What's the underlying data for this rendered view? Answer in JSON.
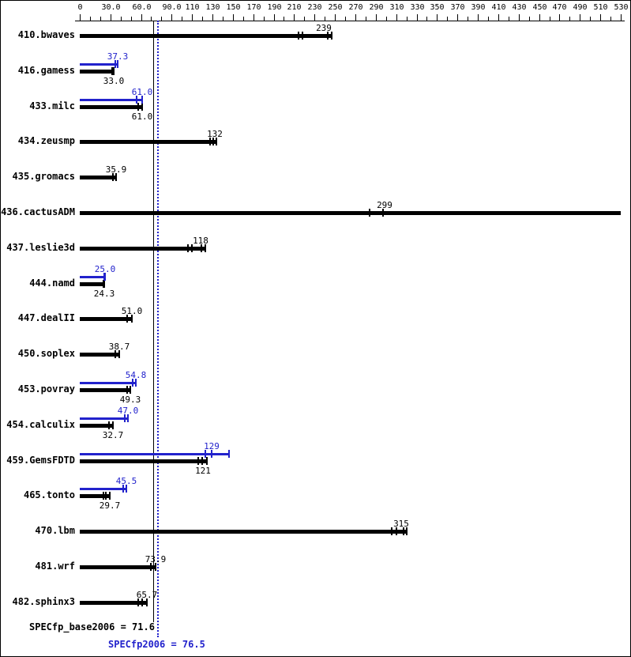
{
  "chart_data": {
    "type": "bar",
    "orientation": "horizontal",
    "title": "",
    "xlabel": "",
    "ylabel": "",
    "xlim": [
      0,
      530
    ],
    "grid": false,
    "legend": "none",
    "colors": {
      "base": "#000000",
      "peak": "#2222cc",
      "background": "#ffffff"
    },
    "axis": {
      "min": 0,
      "max": 530,
      "minor_tick_step": 10,
      "tick_values": [
        0,
        30,
        60,
        90,
        110,
        130,
        150,
        170,
        190,
        210,
        230,
        250,
        270,
        290,
        310,
        330,
        350,
        370,
        390,
        410,
        430,
        450,
        470,
        490,
        510,
        530
      ],
      "tick_labels": [
        "0",
        "30.0",
        "60.0",
        "90.0",
        "110",
        "130",
        "150",
        "170",
        "190",
        "210",
        "230",
        "250",
        "270",
        "290",
        "310",
        "330",
        "350",
        "370",
        "390",
        "410",
        "430",
        "450",
        "470",
        "490",
        "510",
        "530"
      ]
    },
    "categories": [
      "410.bwaves",
      "416.gamess",
      "433.milc",
      "434.zeusmp",
      "435.gromacs",
      "436.cactusADM",
      "437.leslie3d",
      "444.namd",
      "447.dealII",
      "450.soplex",
      "453.povray",
      "454.calculix",
      "459.GemsFDTD",
      "465.tonto",
      "470.lbm",
      "481.wrf",
      "482.sphinx3"
    ],
    "series": [
      {
        "name": "peak",
        "color": "#2222cc",
        "values": [
          null,
          37.3,
          61.0,
          null,
          null,
          null,
          null,
          25.0,
          null,
          null,
          54.8,
          47.0,
          129,
          45.5,
          null,
          null,
          null
        ]
      },
      {
        "name": "base",
        "color": "#000000",
        "values": [
          239,
          33.0,
          61.0,
          132,
          35.9,
          299,
          118,
          24.3,
          51.0,
          38.7,
          49.3,
          32.7,
          121,
          29.7,
          315,
          73.9,
          65.7
        ]
      }
    ],
    "benchmarks": [
      {
        "name": "410.bwaves",
        "peak": null,
        "base": {
          "value": 239,
          "label": "239",
          "runs": [
            214,
            218,
            243,
            247
          ],
          "end": 247
        }
      },
      {
        "name": "416.gamess",
        "peak": {
          "value": 37.3,
          "label": "37.3",
          "runs": [
            34.5,
            37.3
          ],
          "end": 37.3
        },
        "base": {
          "value": 33.0,
          "label": "33.0",
          "runs": [
            31.5,
            33.0
          ],
          "end": 33.0
        }
      },
      {
        "name": "433.milc",
        "peak": {
          "value": 61.0,
          "label": "61.0",
          "runs": [
            56.0,
            61.0
          ],
          "end": 61.0
        },
        "base": {
          "value": 61.0,
          "label": "61.0",
          "runs": [
            57.0,
            61.0
          ],
          "end": 61.0
        }
      },
      {
        "name": "434.zeusmp",
        "peak": null,
        "base": {
          "value": 132,
          "label": "132",
          "runs": [
            128,
            131,
            134
          ],
          "end": 134
        }
      },
      {
        "name": "435.gromacs",
        "peak": null,
        "base": {
          "value": 35.9,
          "label": "35.9",
          "runs": [
            32.5,
            35.9
          ],
          "end": 35.9
        }
      },
      {
        "name": "436.cactusADM",
        "peak": null,
        "base": {
          "value": 299,
          "label": "299",
          "runs": [
            284,
            297
          ],
          "end": 530
        }
      },
      {
        "name": "437.leslie3d",
        "peak": null,
        "base": {
          "value": 118,
          "label": "118",
          "runs": [
            106,
            110,
            119,
            123
          ],
          "end": 123
        }
      },
      {
        "name": "444.namd",
        "peak": {
          "value": 25.0,
          "label": "25.0",
          "runs": [
            24.0,
            25.0
          ],
          "end": 25.0
        },
        "base": {
          "value": 24.3,
          "label": "24.3",
          "runs": [
            23.3,
            24.3
          ],
          "end": 24.3
        }
      },
      {
        "name": "447.dealII",
        "peak": null,
        "base": {
          "value": 51.0,
          "label": "51.0",
          "runs": [
            46.5,
            51.0
          ],
          "end": 51.0
        }
      },
      {
        "name": "450.soplex",
        "peak": null,
        "base": {
          "value": 38.7,
          "label": "38.7",
          "runs": [
            35.0,
            38.7
          ],
          "end": 38.7
        }
      },
      {
        "name": "453.povray",
        "peak": {
          "value": 54.8,
          "label": "54.8",
          "runs": [
            51.5,
            54.8
          ],
          "end": 54.8
        },
        "base": {
          "value": 49.3,
          "label": "49.3",
          "runs": [
            46.3,
            49.3
          ],
          "end": 49.3
        }
      },
      {
        "name": "454.calculix",
        "peak": {
          "value": 47.0,
          "label": "47.0",
          "runs": [
            44.0,
            47.0
          ],
          "end": 47.0
        },
        "base": {
          "value": 32.7,
          "label": "32.7",
          "runs": [
            28.5,
            32.7
          ],
          "end": 32.7
        }
      },
      {
        "name": "459.GemsFDTD",
        "peak": {
          "value": 129,
          "label": "129",
          "runs": [
            123,
            129,
            146
          ],
          "end": 146
        },
        "base": {
          "value": 121,
          "label": "121",
          "runs": [
            116,
            120,
            124.5
          ],
          "end": 124.5
        }
      },
      {
        "name": "465.tonto",
        "peak": {
          "value": 45.5,
          "label": "45.5",
          "runs": [
            42.5,
            45.5
          ],
          "end": 45.5
        },
        "base": {
          "value": 29.7,
          "label": "29.7",
          "runs": [
            23.2,
            25.5,
            29.7
          ],
          "end": 29.7
        }
      },
      {
        "name": "470.lbm",
        "peak": null,
        "base": {
          "value": 315,
          "label": "315",
          "runs": [
            306,
            310,
            317,
            320
          ],
          "end": 320
        }
      },
      {
        "name": "481.wrf",
        "peak": null,
        "base": {
          "value": 73.9,
          "label": "73.9",
          "runs": [
            69.5,
            73.9
          ],
          "end": 73.9
        }
      },
      {
        "name": "482.sphinx3",
        "peak": null,
        "base": {
          "value": 65.7,
          "label": "65.7",
          "runs": [
            57.0,
            61.0,
            65.7
          ],
          "end": 65.7
        }
      }
    ],
    "reference_lines": [
      {
        "id": "base-mean",
        "label": "SPECfp_base2006",
        "value": 71.6,
        "style": "solid",
        "color": "#000000"
      },
      {
        "id": "peak-mean",
        "label": "SPECfp2006",
        "value": 76.5,
        "style": "dotted",
        "color": "#2222cc"
      }
    ]
  },
  "summary": {
    "base_line": "SPECfp_base2006 = 71.6",
    "peak_line": "SPECfp2006 = 76.5"
  }
}
